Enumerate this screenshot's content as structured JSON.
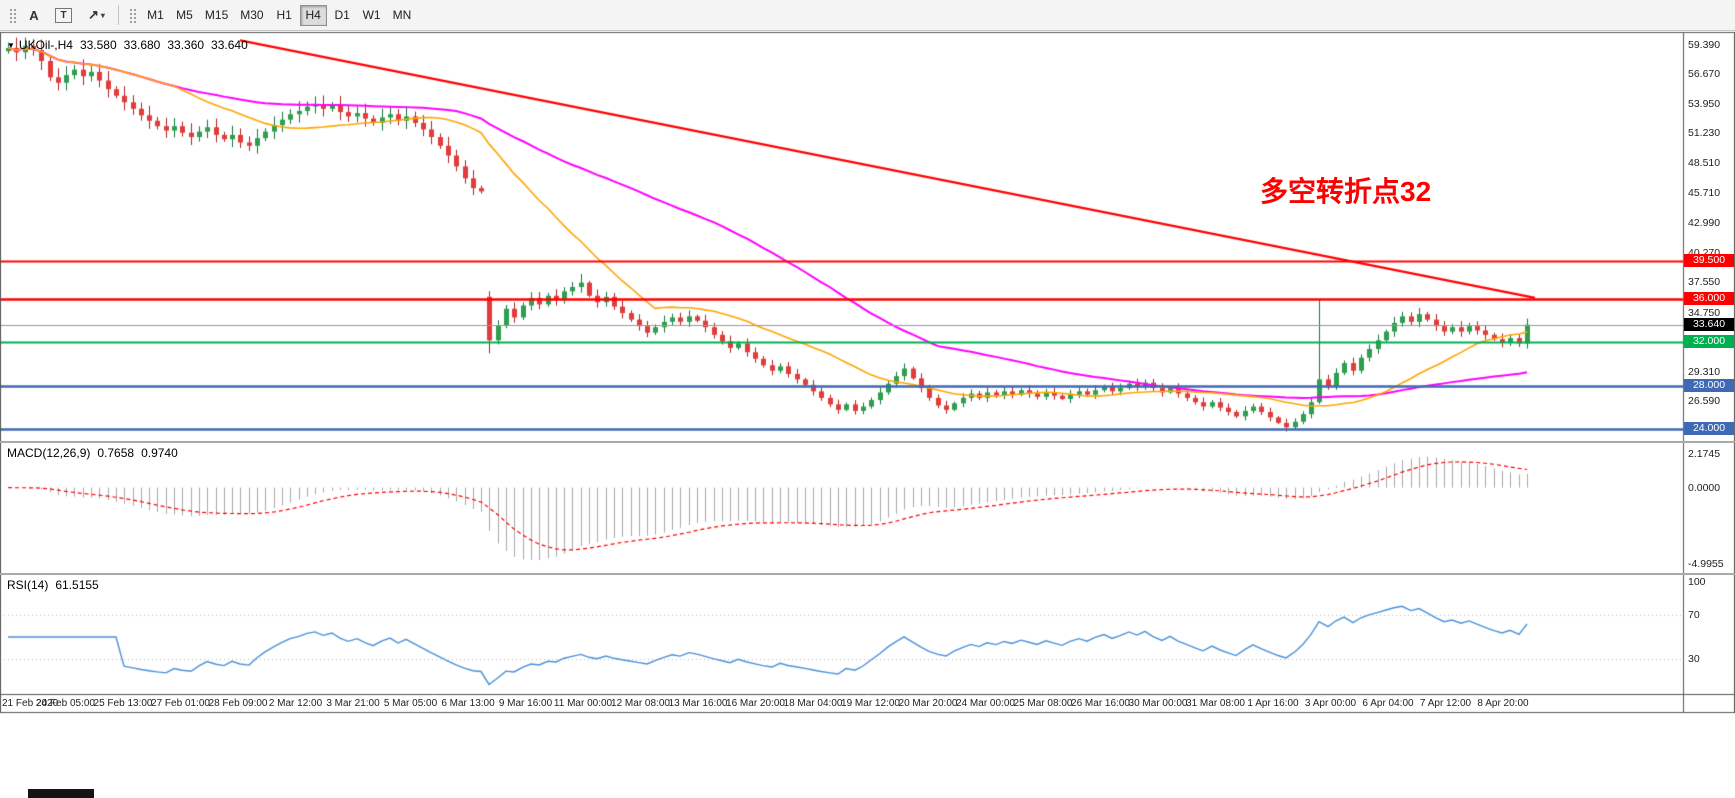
{
  "toolbar": {
    "buttons": {
      "text_label": "A",
      "text_box": "T"
    },
    "timeframes": [
      {
        "label": "M1"
      },
      {
        "label": "M5"
      },
      {
        "label": "M15"
      },
      {
        "label": "M30"
      },
      {
        "label": "H1"
      },
      {
        "label": "H4",
        "active": true
      },
      {
        "label": "D1"
      },
      {
        "label": "W1"
      },
      {
        "label": "MN"
      }
    ]
  },
  "icons": {
    "collapse": "▼",
    "arrow": "↗",
    "caret": "▾"
  },
  "chart_data": {
    "type": "candlestick",
    "symbol_period": "UKOil-,H4",
    "ohlc": {
      "open": "33.580",
      "high": "33.680",
      "low": "33.360",
      "close": "33.640"
    },
    "annotation": {
      "text": "多空转折点32",
      "color": "#FF0000"
    },
    "price_range": [
      23.3,
      60.2
    ],
    "closes": [
      59.1,
      58.7,
      59.3,
      58.9,
      57.9,
      56.4,
      55.9,
      56.6,
      57.1,
      56.5,
      56.9,
      56.1,
      55.3,
      54.7,
      54.1,
      53.5,
      52.9,
      52.4,
      51.9,
      51.5,
      51.9,
      51.3,
      50.9,
      51.4,
      51.8,
      51.1,
      50.7,
      51.1,
      50.4,
      50.1,
      50.8,
      51.4,
      52.0,
      52.5,
      53.0,
      53.3,
      53.7,
      53.9,
      53.5,
      53.8,
      53.2,
      52.8,
      53.1,
      52.6,
      52.2,
      52.7,
      53.0,
      52.4,
      52.8,
      52.2,
      51.6,
      50.9,
      50.1,
      49.2,
      48.2,
      47.1,
      46.2,
      45.9,
      32.2,
      33.6,
      35.1,
      34.3,
      35.4,
      36.1,
      35.5,
      36.3,
      35.9,
      36.7,
      37.1,
      37.5,
      36.3,
      35.7,
      36.2,
      35.3,
      34.7,
      34.1,
      33.5,
      32.9,
      33.4,
      33.9,
      34.3,
      33.9,
      34.4,
      34.0,
      33.4,
      32.7,
      32.1,
      31.5,
      31.9,
      31.1,
      30.5,
      29.9,
      29.4,
      29.8,
      29.1,
      28.6,
      28.1,
      27.5,
      26.9,
      26.3,
      25.8,
      26.3,
      25.7,
      26.1,
      26.7,
      27.4,
      28.2,
      28.9,
      29.6,
      28.7,
      27.8,
      26.9,
      26.2,
      25.8,
      26.4,
      26.9,
      27.3,
      26.9,
      27.4,
      27.1,
      27.5,
      27.2,
      27.6,
      27.3,
      27.0,
      27.4,
      27.1,
      26.8,
      27.2,
      27.5,
      27.2,
      27.6,
      27.9,
      27.5,
      27.8,
      28.2,
      27.9,
      28.3,
      27.8,
      27.4,
      27.8,
      27.3,
      26.9,
      26.5,
      26.1,
      26.5,
      26.0,
      25.6,
      25.2,
      25.7,
      26.1,
      25.6,
      25.1,
      24.6,
      24.2,
      24.7,
      25.4,
      26.5,
      28.6,
      28.0,
      29.2,
      30.1,
      29.4,
      30.6,
      31.4,
      32.2,
      33.0,
      33.8,
      34.4,
      33.9,
      34.6,
      34.1,
      33.5,
      33.0,
      33.4,
      33.0,
      33.5,
      33.1,
      32.7,
      32.3,
      32.0,
      32.4,
      31.9,
      33.64
    ],
    "open_overrides": {
      "0": 58.8,
      "58": 36.2
    },
    "high_overrides": {
      "0": 59.6,
      "69": 38.3,
      "158": 36.0
    },
    "low_overrides": {
      "58": 31.0,
      "154": 23.8
    },
    "candle_colors": {
      "up": "#2E9E4F",
      "up_border": "#17753B",
      "down": "#E23B3B",
      "down_border": "#B22222"
    },
    "moving_averages": [
      {
        "type": "sma",
        "period": 55,
        "color": "#FF00FF",
        "width": 2
      },
      {
        "type": "sma",
        "period": 21,
        "color": "#FFA500",
        "width": 1.6
      }
    ],
    "trendline": {
      "from_candle": 28,
      "from_price": 59.8,
      "to_candle": 184,
      "to_price": 36.1,
      "color": "#FF0000",
      "width": 2.4
    },
    "levels": [
      {
        "price": 39.5,
        "label": "39.500",
        "color": "#FF0000",
        "width": 2
      },
      {
        "price": 36.0,
        "label": "36.000",
        "color": "#FF0000",
        "width": 2.5
      },
      {
        "price": 32.0,
        "label": "32.000",
        "color": "#00B050",
        "width": 2
      },
      {
        "price": 28.0,
        "label": "28.000",
        "color": "#3F69B5",
        "width": 2.5
      },
      {
        "price": 24.0,
        "label": "24.000",
        "color": "#3F69B5",
        "width": 2.5
      }
    ],
    "bid": {
      "price": 33.64,
      "label": "33.640",
      "line_color": "#999999",
      "badge_bg": "#000000"
    },
    "axis_labels": [
      {
        "text": "59.390",
        "price": 59.39
      },
      {
        "text": "56.670",
        "price": 56.67
      },
      {
        "text": "53.950",
        "price": 53.95
      },
      {
        "text": "51.230",
        "price": 51.23
      },
      {
        "text": "48.510",
        "price": 48.51
      },
      {
        "text": "45.710",
        "price": 45.71
      },
      {
        "text": "42.990",
        "price": 42.99
      },
      {
        "text": "40.270",
        "price": 40.27
      },
      {
        "text": "37.550",
        "price": 37.55
      },
      {
        "text": "34.750",
        "price": 34.75
      },
      {
        "text": "29.310",
        "price": 29.31
      },
      {
        "text": "26.590",
        "price": 26.59
      }
    ],
    "macd": {
      "name": "MACD(12,26,9)",
      "fast": 12,
      "slow": 26,
      "signal": 9,
      "value_main": "0.7658",
      "value_signal": "0.9740",
      "axis": [
        {
          "text": "2.1745",
          "v": 2.1745
        },
        {
          "text": "0.0000",
          "v": 0
        },
        {
          "text": "-4.9955",
          "v": -4.9955
        }
      ],
      "range": [
        -5.4,
        2.6
      ],
      "hist_color": "#A8A8A8",
      "signal_color": "#FF0000"
    },
    "rsi": {
      "name": "RSI(14)",
      "period": 14,
      "value": "61.5155",
      "axis": [
        {
          "text": "100",
          "v": 100
        },
        {
          "text": "70",
          "v": 70
        },
        {
          "text": "30",
          "v": 30
        }
      ],
      "levels": [
        70,
        30
      ],
      "color": "#4A90D9",
      "level_color": "#BBBBBB",
      "range": [
        0,
        100
      ]
    },
    "x_labels": [
      "21 Feb 2020",
      "24 Feb 05:00",
      "25 Feb 13:00",
      "27 Feb 01:00",
      "28 Feb 09:00",
      "2 Mar 12:00",
      "3 Mar 21:00",
      "5 Mar 05:00",
      "6 Mar 13:00",
      "9 Mar 16:00",
      "11 Mar 00:00",
      "12 Mar 08:00",
      "13 Mar 16:00",
      "16 Mar 20:00",
      "18 Mar 04:00",
      "19 Mar 12:00",
      "20 Mar 20:00",
      "24 Mar 00:00",
      "25 Mar 08:00",
      "26 Mar 16:00",
      "30 Mar 00:00",
      "31 Mar 08:00",
      "1 Apr 16:00",
      "3 Apr 00:00",
      "6 Apr 04:00",
      "7 Apr 12:00",
      "8 Apr 20:00"
    ]
  }
}
